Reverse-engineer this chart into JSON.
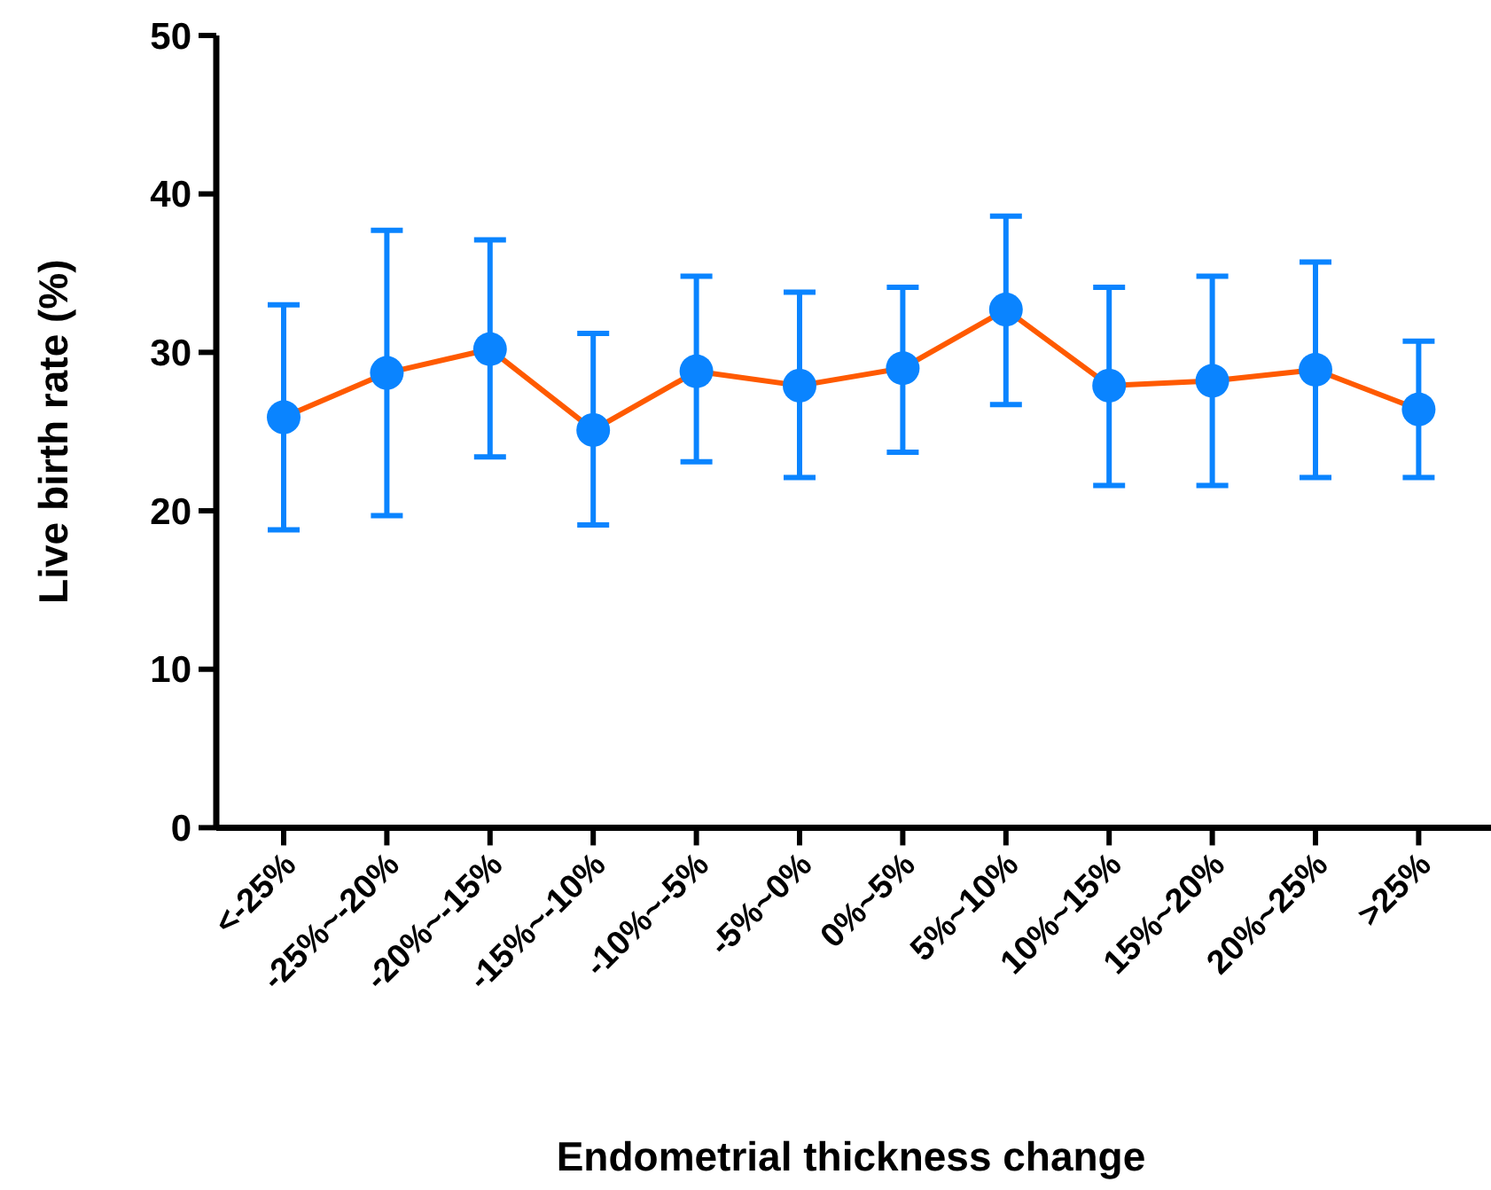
{
  "chart_data": {
    "type": "line",
    "xlabel": "Endometrial thickness change",
    "ylabel": "Live birth rate (%)",
    "categories": [
      "<-25%",
      "-25%~-20%",
      "-20%~-15%",
      "-15%~-10%",
      "-10%~-5%",
      "-5%~0%",
      "0%~5%",
      "5%~10%",
      "10%~15%",
      "15%~20%",
      "20%~25%",
      ">25%"
    ],
    "series": [
      {
        "color": "#ff5a00",
        "colors": [
          "#0a84ff",
          "#0a84ff",
          "#0a84ff",
          "#0a84ff",
          "#0a84ff",
          "#0a84ff",
          "#0a84ff",
          "#0a84ff",
          "#0a84ff",
          "#0a84ff",
          "#0a84ff",
          "#0a84ff"
        ],
        "values": [
          25.9,
          28.7,
          30.2,
          25.1,
          28.8,
          27.9,
          29.0,
          32.7,
          27.9,
          28.2,
          28.9,
          26.4
        ],
        "errors": [
          [
            18.8,
            33.0
          ],
          [
            19.7,
            37.7
          ],
          [
            23.4,
            37.1
          ],
          [
            19.1,
            31.2
          ],
          [
            23.1,
            34.8
          ],
          [
            22.1,
            33.8
          ],
          [
            23.7,
            34.1
          ],
          [
            26.7,
            38.6
          ],
          [
            21.6,
            34.1
          ],
          [
            21.6,
            34.8
          ],
          [
            22.1,
            35.7
          ],
          [
            22.1,
            30.7
          ]
        ]
      }
    ],
    "ylim": [
      0,
      50
    ],
    "yticks": [
      0,
      10,
      20,
      30,
      40,
      50
    ],
    "marker": "circle",
    "line_style": "solid",
    "grid": false
  }
}
